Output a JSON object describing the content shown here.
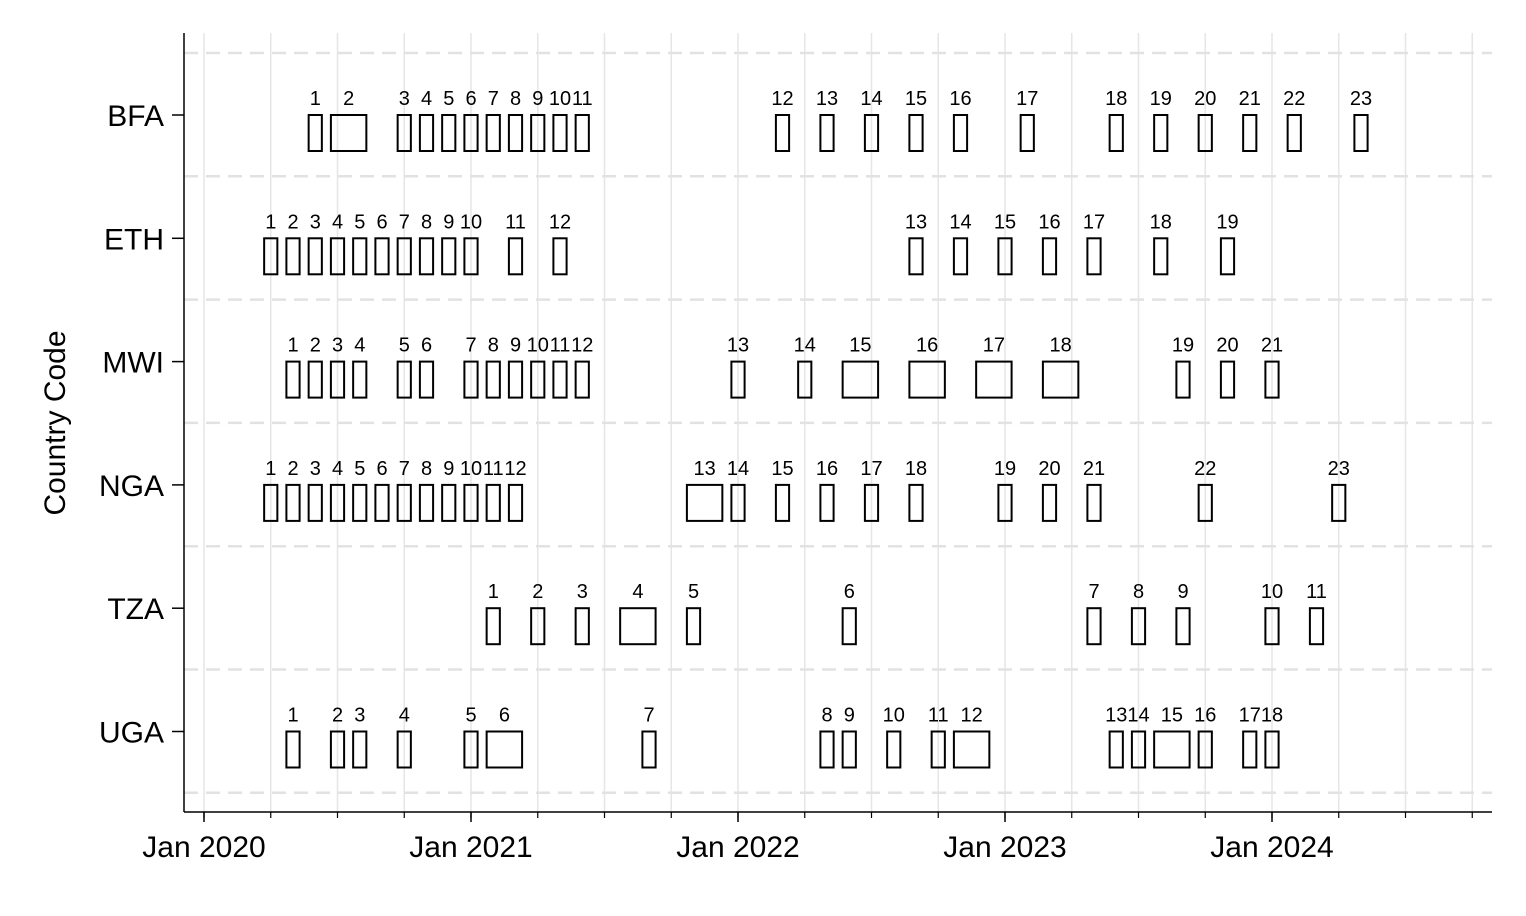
{
  "chart_data": {
    "type": "timeline",
    "title": "",
    "xlabel": "",
    "ylabel": "Country Code",
    "x_unit": "month",
    "x_ticks": [
      "Jan 2020",
      "Jan 2021",
      "Jan 2022",
      "Jan 2023",
      "Jan 2024"
    ],
    "xlim": [
      "2019-12",
      "2024-12"
    ],
    "grid": "vertical solid every 3 months, horizontal dashed between rows",
    "categories": [
      "BFA",
      "ETH",
      "MWI",
      "NGA",
      "TZA",
      "UGA"
    ],
    "series": [
      {
        "country": "BFA",
        "rounds": [
          {
            "label": "1",
            "start": "2020-06",
            "end": "2020-06"
          },
          {
            "label": "2",
            "start": "2020-07",
            "end": "2020-08"
          },
          {
            "label": "3",
            "start": "2020-10",
            "end": "2020-10"
          },
          {
            "label": "4",
            "start": "2020-11",
            "end": "2020-11"
          },
          {
            "label": "5",
            "start": "2020-12",
            "end": "2020-12"
          },
          {
            "label": "6",
            "start": "2021-01",
            "end": "2021-01"
          },
          {
            "label": "7",
            "start": "2021-02",
            "end": "2021-02"
          },
          {
            "label": "8",
            "start": "2021-03",
            "end": "2021-03"
          },
          {
            "label": "9",
            "start": "2021-04",
            "end": "2021-04"
          },
          {
            "label": "10",
            "start": "2021-05",
            "end": "2021-05"
          },
          {
            "label": "11",
            "start": "2021-06",
            "end": "2021-06"
          },
          {
            "label": "12",
            "start": "2022-03",
            "end": "2022-03"
          },
          {
            "label": "13",
            "start": "2022-05",
            "end": "2022-05"
          },
          {
            "label": "14",
            "start": "2022-07",
            "end": "2022-07"
          },
          {
            "label": "15",
            "start": "2022-09",
            "end": "2022-09"
          },
          {
            "label": "16",
            "start": "2022-11",
            "end": "2022-11"
          },
          {
            "label": "17",
            "start": "2023-02",
            "end": "2023-02"
          },
          {
            "label": "18",
            "start": "2023-06",
            "end": "2023-06"
          },
          {
            "label": "19",
            "start": "2023-08",
            "end": "2023-08"
          },
          {
            "label": "20",
            "start": "2023-10",
            "end": "2023-10"
          },
          {
            "label": "21",
            "start": "2023-12",
            "end": "2023-12"
          },
          {
            "label": "22",
            "start": "2024-02",
            "end": "2024-02"
          },
          {
            "label": "23",
            "start": "2024-05",
            "end": "2024-05"
          }
        ]
      },
      {
        "country": "ETH",
        "rounds": [
          {
            "label": "1",
            "start": "2020-04",
            "end": "2020-04"
          },
          {
            "label": "2",
            "start": "2020-05",
            "end": "2020-05"
          },
          {
            "label": "3",
            "start": "2020-06",
            "end": "2020-06"
          },
          {
            "label": "4",
            "start": "2020-07",
            "end": "2020-07"
          },
          {
            "label": "5",
            "start": "2020-08",
            "end": "2020-08"
          },
          {
            "label": "6",
            "start": "2020-09",
            "end": "2020-09"
          },
          {
            "label": "7",
            "start": "2020-10",
            "end": "2020-10"
          },
          {
            "label": "8",
            "start": "2020-11",
            "end": "2020-11"
          },
          {
            "label": "9",
            "start": "2020-12",
            "end": "2020-12"
          },
          {
            "label": "10",
            "start": "2021-01",
            "end": "2021-01"
          },
          {
            "label": "11",
            "start": "2021-03",
            "end": "2021-03"
          },
          {
            "label": "12",
            "start": "2021-05",
            "end": "2021-05"
          },
          {
            "label": "13",
            "start": "2022-09",
            "end": "2022-09"
          },
          {
            "label": "14",
            "start": "2022-11",
            "end": "2022-11"
          },
          {
            "label": "15",
            "start": "2023-01",
            "end": "2023-01"
          },
          {
            "label": "16",
            "start": "2023-03",
            "end": "2023-03"
          },
          {
            "label": "17",
            "start": "2023-05",
            "end": "2023-05"
          },
          {
            "label": "18",
            "start": "2023-08",
            "end": "2023-08"
          },
          {
            "label": "19",
            "start": "2023-11",
            "end": "2023-11"
          }
        ]
      },
      {
        "country": "MWI",
        "rounds": [
          {
            "label": "1",
            "start": "2020-05",
            "end": "2020-05"
          },
          {
            "label": "2",
            "start": "2020-06",
            "end": "2020-06"
          },
          {
            "label": "3",
            "start": "2020-07",
            "end": "2020-07"
          },
          {
            "label": "4",
            "start": "2020-08",
            "end": "2020-08"
          },
          {
            "label": "5",
            "start": "2020-10",
            "end": "2020-10"
          },
          {
            "label": "6",
            "start": "2020-11",
            "end": "2020-11"
          },
          {
            "label": "7",
            "start": "2021-01",
            "end": "2021-01"
          },
          {
            "label": "8",
            "start": "2021-02",
            "end": "2021-02"
          },
          {
            "label": "9",
            "start": "2021-03",
            "end": "2021-03"
          },
          {
            "label": "10",
            "start": "2021-04",
            "end": "2021-04"
          },
          {
            "label": "11",
            "start": "2021-05",
            "end": "2021-05"
          },
          {
            "label": "12",
            "start": "2021-06",
            "end": "2021-06"
          },
          {
            "label": "13",
            "start": "2022-01",
            "end": "2022-01"
          },
          {
            "label": "14",
            "start": "2022-04",
            "end": "2022-04"
          },
          {
            "label": "15",
            "start": "2022-06",
            "end": "2022-07"
          },
          {
            "label": "16",
            "start": "2022-09",
            "end": "2022-10"
          },
          {
            "label": "17",
            "start": "2022-12",
            "end": "2023-01"
          },
          {
            "label": "18",
            "start": "2023-03",
            "end": "2023-04"
          },
          {
            "label": "19",
            "start": "2023-09",
            "end": "2023-09"
          },
          {
            "label": "20",
            "start": "2023-11",
            "end": "2023-11"
          },
          {
            "label": "21",
            "start": "2024-01",
            "end": "2024-01"
          }
        ]
      },
      {
        "country": "NGA",
        "rounds": [
          {
            "label": "1",
            "start": "2020-04",
            "end": "2020-04"
          },
          {
            "label": "2",
            "start": "2020-05",
            "end": "2020-05"
          },
          {
            "label": "3",
            "start": "2020-06",
            "end": "2020-06"
          },
          {
            "label": "4",
            "start": "2020-07",
            "end": "2020-07"
          },
          {
            "label": "5",
            "start": "2020-08",
            "end": "2020-08"
          },
          {
            "label": "6",
            "start": "2020-09",
            "end": "2020-09"
          },
          {
            "label": "7",
            "start": "2020-10",
            "end": "2020-10"
          },
          {
            "label": "8",
            "start": "2020-11",
            "end": "2020-11"
          },
          {
            "label": "9",
            "start": "2020-12",
            "end": "2020-12"
          },
          {
            "label": "10",
            "start": "2021-01",
            "end": "2021-01"
          },
          {
            "label": "11",
            "start": "2021-02",
            "end": "2021-02"
          },
          {
            "label": "12",
            "start": "2021-03",
            "end": "2021-03"
          },
          {
            "label": "13",
            "start": "2021-11",
            "end": "2021-12"
          },
          {
            "label": "14",
            "start": "2022-01",
            "end": "2022-01"
          },
          {
            "label": "15",
            "start": "2022-03",
            "end": "2022-03"
          },
          {
            "label": "16",
            "start": "2022-05",
            "end": "2022-05"
          },
          {
            "label": "17",
            "start": "2022-07",
            "end": "2022-07"
          },
          {
            "label": "18",
            "start": "2022-09",
            "end": "2022-09"
          },
          {
            "label": "19",
            "start": "2023-01",
            "end": "2023-01"
          },
          {
            "label": "20",
            "start": "2023-03",
            "end": "2023-03"
          },
          {
            "label": "21",
            "start": "2023-05",
            "end": "2023-05"
          },
          {
            "label": "22",
            "start": "2023-10",
            "end": "2023-10"
          },
          {
            "label": "23",
            "start": "2024-04",
            "end": "2024-04"
          }
        ]
      },
      {
        "country": "TZA",
        "rounds": [
          {
            "label": "1",
            "start": "2021-02",
            "end": "2021-02"
          },
          {
            "label": "2",
            "start": "2021-04",
            "end": "2021-04"
          },
          {
            "label": "3",
            "start": "2021-06",
            "end": "2021-06"
          },
          {
            "label": "4",
            "start": "2021-08",
            "end": "2021-09"
          },
          {
            "label": "5",
            "start": "2021-11",
            "end": "2021-11"
          },
          {
            "label": "6",
            "start": "2022-06",
            "end": "2022-06"
          },
          {
            "label": "7",
            "start": "2023-05",
            "end": "2023-05"
          },
          {
            "label": "8",
            "start": "2023-07",
            "end": "2023-07"
          },
          {
            "label": "9",
            "start": "2023-09",
            "end": "2023-09"
          },
          {
            "label": "10",
            "start": "2024-01",
            "end": "2024-01"
          },
          {
            "label": "11",
            "start": "2024-03",
            "end": "2024-03"
          }
        ]
      },
      {
        "country": "UGA",
        "rounds": [
          {
            "label": "1",
            "start": "2020-05",
            "end": "2020-05"
          },
          {
            "label": "2",
            "start": "2020-07",
            "end": "2020-07"
          },
          {
            "label": "3",
            "start": "2020-08",
            "end": "2020-08"
          },
          {
            "label": "4",
            "start": "2020-10",
            "end": "2020-10"
          },
          {
            "label": "5",
            "start": "2021-01",
            "end": "2021-01"
          },
          {
            "label": "6",
            "start": "2021-02",
            "end": "2021-03"
          },
          {
            "label": "7",
            "start": "2021-09",
            "end": "2021-09"
          },
          {
            "label": "8",
            "start": "2022-05",
            "end": "2022-05"
          },
          {
            "label": "9",
            "start": "2022-06",
            "end": "2022-06"
          },
          {
            "label": "10",
            "start": "2022-08",
            "end": "2022-08"
          },
          {
            "label": "11",
            "start": "2022-10",
            "end": "2022-10"
          },
          {
            "label": "12",
            "start": "2022-11",
            "end": "2022-12"
          },
          {
            "label": "13",
            "start": "2023-06",
            "end": "2023-06"
          },
          {
            "label": "14",
            "start": "2023-07",
            "end": "2023-07"
          },
          {
            "label": "15",
            "start": "2023-08",
            "end": "2023-09"
          },
          {
            "label": "16",
            "start": "2023-10",
            "end": "2023-10"
          },
          {
            "label": "17",
            "start": "2023-12",
            "end": "2023-12"
          },
          {
            "label": "18",
            "start": "2024-01",
            "end": "2024-01"
          }
        ]
      }
    ]
  }
}
